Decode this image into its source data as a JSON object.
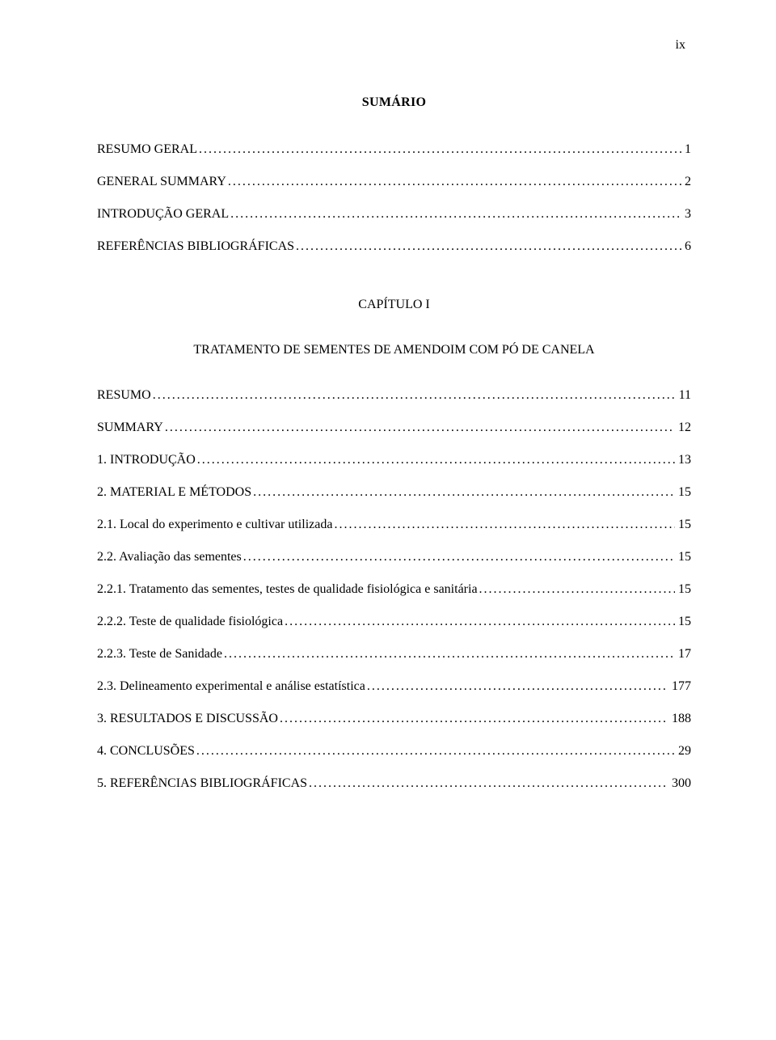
{
  "page_number_top": "ix",
  "title": "SUMÁRIO",
  "entries_top": [
    {
      "label": "RESUMO GERAL",
      "page": "1"
    },
    {
      "label": "GENERAL SUMMARY",
      "page": "2"
    },
    {
      "label": "INTRODUÇÃO GERAL",
      "page": "3"
    },
    {
      "label": "REFERÊNCIAS BIBLIOGRÁFICAS",
      "page": "6"
    }
  ],
  "chapter_heading": "CAPÍTULO I",
  "chapter_subtitle": "TRATAMENTO DE SEMENTES DE AMENDOIM COM PÓ DE CANELA",
  "entries_chapter": [
    {
      "label": "RESUMO",
      "page": "11"
    },
    {
      "label": "SUMMARY",
      "page": "12"
    },
    {
      "label": "1. INTRODUÇÃO",
      "page": "13"
    },
    {
      "label": "2. MATERIAL E MÉTODOS",
      "page": "15"
    },
    {
      "label": "2.1. Local do experimento e cultivar utilizada",
      "page": "15"
    },
    {
      "label": "2.2. Avaliação das sementes",
      "page": "15"
    },
    {
      "label": "2.2.1. Tratamento das sementes, testes de qualidade fisiológica e sanitária",
      "page": "15"
    },
    {
      "label": "2.2.2. Teste de qualidade fisiológica",
      "page": "15"
    },
    {
      "label": "2.2.3. Teste de Sanidade",
      "page": "17"
    },
    {
      "label": "2.3. Delineamento experimental e análise estatística",
      "page": "177"
    },
    {
      "label": "3. RESULTADOS E DISCUSSÃO",
      "page": "188"
    },
    {
      "label": "4. CONCLUSÕES",
      "page": "29"
    },
    {
      "label": "5. REFERÊNCIAS BIBLIOGRÁFICAS",
      "page": "300"
    }
  ]
}
